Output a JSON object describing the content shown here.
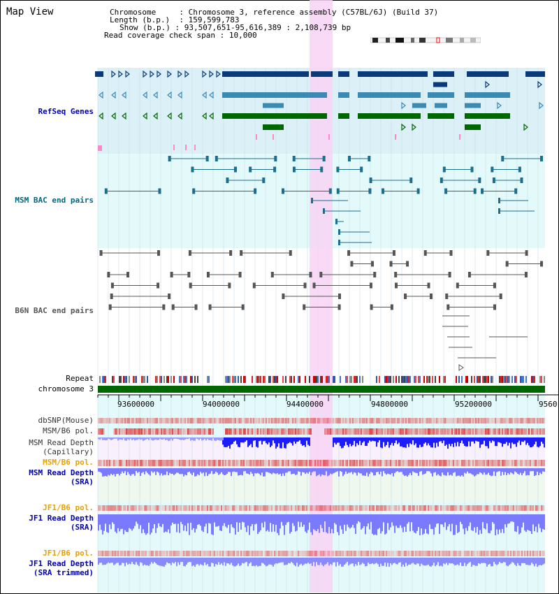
{
  "title": "Map View",
  "info": {
    "chromosome_key": "Chromosome",
    "chromosome_value": "Chromosome 3, reference assembly (C57BL/6J) (Build 37)",
    "length_key": "Length (b.p.)",
    "length_value": "159,599,783",
    "show_key": "Show (b.p.)",
    "show_value": "93,507,651-95,616,389 : 2,108,739 bp",
    "coverage_key": "Read coverage check span",
    "coverage_value": "10,000"
  },
  "tracks": {
    "refseq": "RefSeq Genes",
    "msm_bac": "MSM BAC end pairs",
    "b6n_bac": "B6N BAC end pairs",
    "repeat": "Repeat",
    "chromosome": "chromosome 3",
    "dbsnp": "dbSNP(Mouse)",
    "msm_b6_pol_1": "MSM/B6 pol.",
    "msm_depth_cap_1": "MSM Read Depth",
    "msm_depth_cap_2": "(Capillary)",
    "msm_b6_pol_2": "MSM/B6 pol.",
    "msm_depth_sra_1": "MSM Read Depth",
    "msm_depth_sra_2": "(SRA)",
    "jf1_pol_1": "JF1/B6 pol.",
    "jf1_depth_1": "JF1 Read Depth",
    "jf1_depth_2": "(SRA)",
    "jf1_pol_2": "JF1/B6 pol.",
    "jf1_trim_1": "JF1 Read Depth",
    "jf1_trim_2": "(SRA trimmed)"
  },
  "axis_ticks": [
    "93600000",
    "94000000",
    "94400000",
    "94800000",
    "95200000",
    "9560"
  ],
  "colors": {
    "refseq_dark": "#0b3a7a",
    "refseq_mid": "#3b8ab4",
    "refseq_green": "#006600",
    "bac_teal": "#1c6e8c",
    "bac_gray": "#555555",
    "highlight": "#f8d4f4",
    "depth_blue": "#1c1cff",
    "depth_light": "#7a7aff",
    "pol_red": "#e03030",
    "label_orange": "#e8a000",
    "label_blue": "#0000aa",
    "label_teal": "#006680"
  }
}
